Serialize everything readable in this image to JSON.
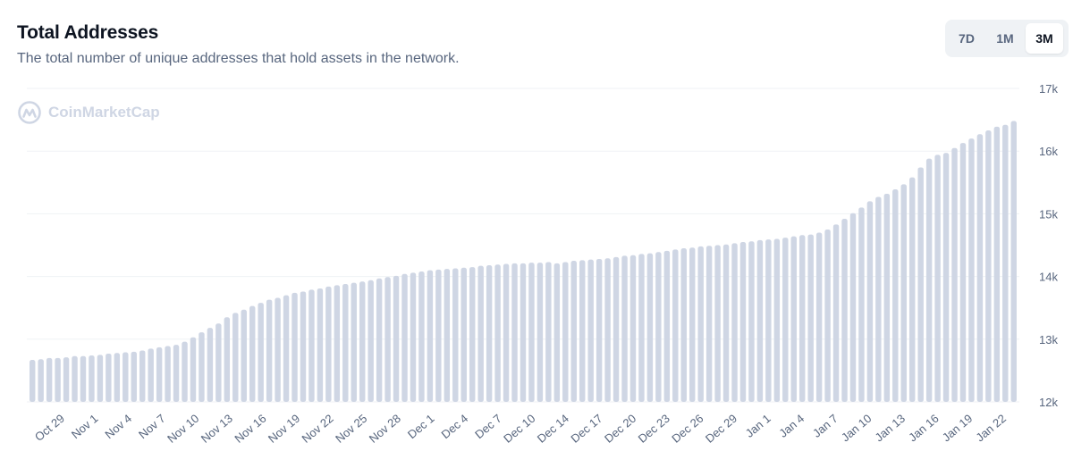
{
  "header": {
    "title": "Total Addresses",
    "subtitle": "The total number of unique addresses that hold assets in the network."
  },
  "range_buttons": [
    {
      "label": "7D",
      "active": false
    },
    {
      "label": "1M",
      "active": false
    },
    {
      "label": "3M",
      "active": true
    }
  ],
  "watermark": {
    "text": "CoinMarketCap",
    "icon": "coinmarketcap-logo-icon"
  },
  "colors": {
    "bar": "#cfd6e4",
    "grid": "#eff2f5",
    "text": "#58667e"
  },
  "chart_data": {
    "type": "bar",
    "title": "Total Addresses",
    "ylim": [
      12000,
      17000
    ],
    "y_ticks": [
      "12k",
      "13k",
      "14k",
      "15k",
      "16k",
      "17k"
    ],
    "y_tick_values": [
      12000,
      13000,
      14000,
      15000,
      16000,
      17000
    ],
    "grid": true,
    "x_labels": [
      "Oct 29",
      "Nov 1",
      "Nov 4",
      "Nov 7",
      "Nov 10",
      "Nov 13",
      "Nov 16",
      "Nov 19",
      "Nov 22",
      "Nov 25",
      "Nov 28",
      "Dec 1",
      "Dec 4",
      "Dec 7",
      "Dec 10",
      "Dec 14",
      "Dec 17",
      "Dec 20",
      "Dec 23",
      "Dec 26",
      "Dec 29",
      "Jan 1",
      "Jan 4",
      "Jan 7",
      "Jan 10",
      "Jan 13",
      "Jan 16",
      "Jan 19",
      "Jan 22"
    ],
    "values": [
      12670,
      12680,
      12700,
      12700,
      12710,
      12730,
      12730,
      12740,
      12750,
      12770,
      12780,
      12790,
      12800,
      12820,
      12850,
      12870,
      12890,
      12910,
      12960,
      13030,
      13110,
      13180,
      13250,
      13350,
      13420,
      13470,
      13530,
      13580,
      13630,
      13660,
      13700,
      13740,
      13760,
      13790,
      13810,
      13840,
      13860,
      13880,
      13900,
      13920,
      13940,
      13970,
      13990,
      14010,
      14040,
      14060,
      14080,
      14100,
      14110,
      14120,
      14130,
      14140,
      14150,
      14170,
      14180,
      14190,
      14200,
      14210,
      14210,
      14220,
      14220,
      14230,
      14210,
      14230,
      14250,
      14260,
      14270,
      14280,
      14290,
      14310,
      14330,
      14340,
      14360,
      14370,
      14390,
      14410,
      14430,
      14450,
      14460,
      14480,
      14490,
      14500,
      14510,
      14530,
      14550,
      14560,
      14580,
      14590,
      14600,
      14620,
      14640,
      14660,
      14670,
      14700,
      14750,
      14830,
      14920,
      15010,
      15100,
      15200,
      15270,
      15320,
      15390,
      15470,
      15580,
      15740,
      15880,
      15940,
      15970,
      16050,
      16130,
      16200,
      16270,
      16330,
      16390,
      16420,
      16480
    ]
  }
}
